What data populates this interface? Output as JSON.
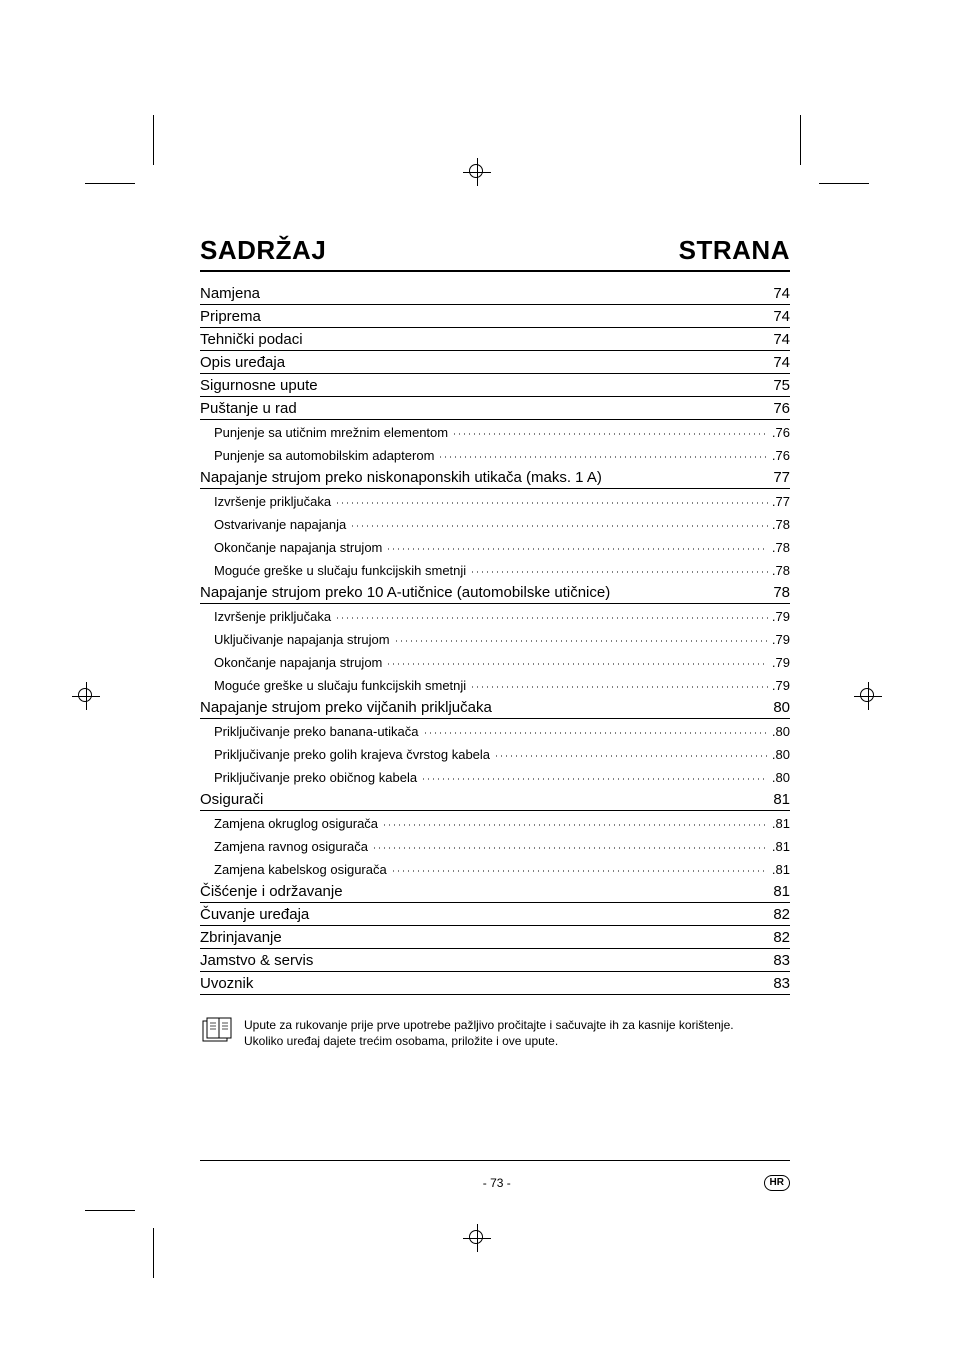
{
  "colors": {
    "text": "#000000",
    "background": "#ffffff",
    "rule": "#000000"
  },
  "typography": {
    "heading_fontsize_pt": 20,
    "section_fontsize_pt": 11,
    "sub_fontsize_pt": 9.5,
    "note_fontsize_pt": 9,
    "footer_fontsize_pt": 9,
    "font_family": "Arial, Helvetica, sans-serif"
  },
  "heading": {
    "left": "SADRŽAJ",
    "right": "STRANA"
  },
  "toc": [
    {
      "label": "Namjena",
      "page": "74"
    },
    {
      "label": "Priprema",
      "page": "74"
    },
    {
      "label": "Tehnički podaci",
      "page": "74"
    },
    {
      "label": "Opis uređaja",
      "page": "74"
    },
    {
      "label": "Sigurnosne upute",
      "page": "75"
    },
    {
      "label": "Puštanje u rad",
      "page": "76",
      "subs": [
        {
          "label": "Punjenje sa utičnim mrežnim elementom",
          "page": ".76"
        },
        {
          "label": "Punjenje sa automobilskim adapterom",
          "page": ".76"
        }
      ]
    },
    {
      "label": "Napajanje strujom preko niskonaponskih utikača (maks. 1 A)",
      "page": "77",
      "subs": [
        {
          "label": "Izvršenje priključaka",
          "page": ".77"
        },
        {
          "label": "Ostvarivanje napajanja",
          "page": ".78"
        },
        {
          "label": "Okončanje napajanja strujom",
          "page": ".78"
        },
        {
          "label": "Moguće greške u slučaju funkcijskih smetnji",
          "page": ".78"
        }
      ]
    },
    {
      "label": "Napajanje strujom preko 10 A-utičnice (automobilske utičnice)",
      "page": "78",
      "subs": [
        {
          "label": "Izvršenje priključaka",
          "page": ".79"
        },
        {
          "label": "Uključivanje napajanja strujom",
          "page": ".79"
        },
        {
          "label": "Okončanje napajanja strujom",
          "page": ".79"
        },
        {
          "label": "Moguće greške u slučaju funkcijskih smetnji",
          "page": ".79"
        }
      ]
    },
    {
      "label": "Napajanje strujom preko vijčanih priključaka",
      "page": "80",
      "subs": [
        {
          "label": "Priključivanje preko banana-utikača",
          "page": ".80"
        },
        {
          "label": "Priključivanje preko golih krajeva čvrstog kabela",
          "page": ".80"
        },
        {
          "label": "Priključivanje preko običnog kabela",
          "page": ".80"
        }
      ]
    },
    {
      "label": "Osigurači",
      "page": "81",
      "subs": [
        {
          "label": "Zamjena okruglog osigurača",
          "page": ".81"
        },
        {
          "label": "Zamjena ravnog osigurača",
          "page": ".81"
        },
        {
          "label": "Zamjena kabelskog osigurača",
          "page": ".81"
        }
      ]
    },
    {
      "label": "Čišćenje i održavanje",
      "page": "81"
    },
    {
      "label": "Čuvanje uređaja",
      "page": "82"
    },
    {
      "label": "Zbrinjavanje",
      "page": "82"
    },
    {
      "label": "Jamstvo & servis",
      "page": "83"
    },
    {
      "label": "Uvoznik",
      "page": "83"
    }
  ],
  "note": {
    "line1": "Upute za rukovanje prije prve upotrebe pažljivo pročitajte i sačuvajte ih za kasnije korištenje.",
    "line2": "Ukoliko uređaj dajete trećim osobama, priložite i ove upute."
  },
  "footer": {
    "page_number": "- 73 -",
    "badge": "HR"
  }
}
